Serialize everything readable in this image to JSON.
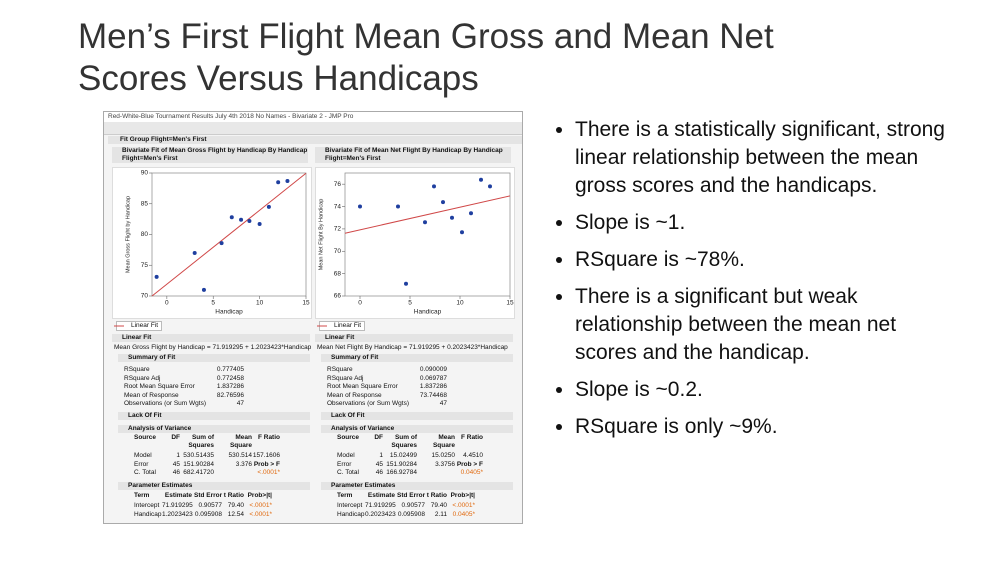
{
  "slide": {
    "title": "Men’s First Flight Mean Gross and Mean Net Scores Versus Handicaps",
    "bullets": [
      "There is a statistically significant, strong linear relationship between the mean gross scores and the handicaps.",
      "Slope is ~1.",
      "RSquare is ~78%.",
      "There is a significant but weak relationship between the mean net scores and the handicap.",
      "Slope is ~0.2.",
      "RSquare is only ~9%."
    ]
  },
  "window": {
    "title": "Red-White-Blue Tournament Results July 4th 2018 No Names - Bivariate 2 - JMP Pro",
    "group": "Fit Group Flight=Men's First"
  },
  "panels": [
    {
      "heading": "Bivariate Fit of Mean Gross Flight by Handicap By Handicap Flight=Men's First",
      "legend": "Linear Fit",
      "fit_heading": "Linear Fit",
      "equation": "Mean Gross Flight by Handicap = 71.919295 + 1.2023423*Handicap",
      "summary": {
        "heading": "Summary of Fit",
        "rows": [
          [
            "RSquare",
            "0.777405"
          ],
          [
            "RSquare Adj",
            "0.772458"
          ],
          [
            "Root Mean Square Error",
            "1.837286"
          ],
          [
            "Mean of Response",
            "82.76596"
          ],
          [
            "Observations (or Sum Wgts)",
            "47"
          ]
        ]
      },
      "lack_of_fit": "Lack Of Fit",
      "anova": {
        "heading": "Analysis of Variance",
        "columns": [
          "Source",
          "DF",
          "Sum of Squares",
          "Mean Square",
          "F Ratio"
        ],
        "rows": [
          [
            "Model",
            "1",
            "530.51435",
            "530.514",
            "157.1606"
          ],
          [
            "Error",
            "45",
            "151.90284",
            "3.376",
            "Prob > F"
          ],
          [
            "C. Total",
            "46",
            "682.41720",
            null,
            "<.0001*"
          ]
        ]
      },
      "parameters": {
        "heading": "Parameter Estimates",
        "columns": [
          "Term",
          "Estimate",
          "Std Error",
          "t Ratio",
          "Prob>|t|"
        ],
        "rows": [
          [
            "Intercept",
            71.919295,
            "0.90577",
            "79.40",
            "<.0001*"
          ],
          [
            "Handicap",
            1.2023423,
            "0.095908",
            "12.54",
            "<.0001*"
          ]
        ]
      }
    },
    {
      "heading": "Bivariate Fit of Mean Net Flight By Handicap By Handicap Flight=Men's First",
      "legend": "Linear Fit",
      "fit_heading": "Linear Fit",
      "equation": "Mean Net Flight By Handicap = 71.919295 + 0.2023423*Handicap",
      "summary": {
        "heading": "Summary of Fit",
        "rows": [
          [
            "RSquare",
            "0.090009"
          ],
          [
            "RSquare Adj",
            "0.069787"
          ],
          [
            "Root Mean Square Error",
            "1.837286"
          ],
          [
            "Mean of Response",
            "73.74468"
          ],
          [
            "Observations (or Sum Wgts)",
            "47"
          ]
        ]
      },
      "lack_of_fit": "Lack Of Fit",
      "anova": {
        "heading": "Analysis of Variance",
        "columns": [
          "Source",
          "DF",
          "Sum of Squares",
          "Mean Square",
          "F Ratio"
        ],
        "rows": [
          [
            "Model",
            "1",
            "15.02499",
            "15.0250",
            "4.4510"
          ],
          [
            "Error",
            "45",
            "151.90284",
            "3.3756",
            "Prob > F"
          ],
          [
            "C. Total",
            "46",
            "166.92784",
            null,
            "0.0405*"
          ]
        ]
      },
      "parameters": {
        "heading": "Parameter Estimates",
        "columns": [
          "Term",
          "Estimate",
          "Std Error",
          "t Ratio",
          "Prob>|t|"
        ],
        "rows": [
          [
            "Intercept",
            71.919295,
            "0.90577",
            "79.40",
            "<.0001*"
          ],
          [
            "Handicap",
            0.2023423,
            "0.095908",
            "2.11",
            "0.0405*"
          ]
        ]
      }
    }
  ],
  "chart_data": [
    {
      "type": "scatter",
      "x_label": "Handicap",
      "y_label": "Mean Gross Flight by Handicap",
      "x": [
        -1.1,
        3.0,
        4.0,
        5.9,
        7.0,
        8.0,
        8.9,
        10.0,
        11.0,
        12.0,
        13.0
      ],
      "values": [
        73.1,
        77.0,
        71.0,
        78.6,
        82.8,
        82.4,
        82.2,
        81.7,
        84.5,
        88.5,
        88.7
      ],
      "color": "#1f3f9f",
      "fit_color": "#d04848",
      "xlim": [
        -1.6,
        15
      ],
      "ylim": [
        70,
        90
      ],
      "xticks": [
        0,
        5,
        10,
        15
      ],
      "yticks": [
        70,
        75,
        80,
        85,
        90
      ]
    },
    {
      "type": "scatter",
      "x_label": "Handicap",
      "y_label": "Mean Net Flight By Handicap",
      "x": [
        0.0,
        3.8,
        4.6,
        6.5,
        7.4,
        8.3,
        9.2,
        10.2,
        11.1,
        12.1,
        13.0
      ],
      "values": [
        74.0,
        74.0,
        67.1,
        72.6,
        75.8,
        74.4,
        73.0,
        71.7,
        73.4,
        76.4,
        75.8
      ],
      "color": "#1f3f9f",
      "fit_color": "#d04848",
      "xlim": [
        -1.5,
        15
      ],
      "ylim": [
        66,
        77
      ],
      "xticks": [
        0,
        5,
        10,
        15
      ],
      "yticks": [
        66,
        68,
        70,
        72,
        74,
        76
      ]
    }
  ]
}
